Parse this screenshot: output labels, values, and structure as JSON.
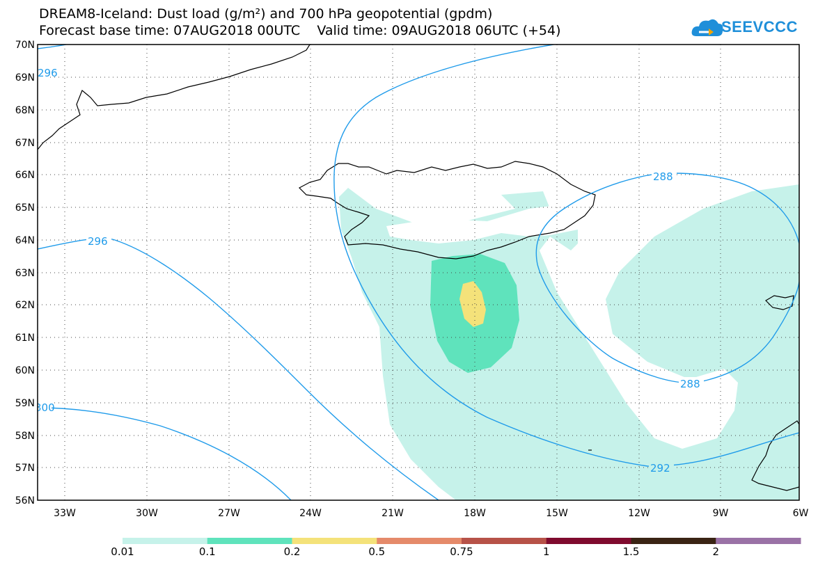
{
  "title": {
    "line1": "DREAM8-Iceland: Dust load (g/m²) and 700 hPa geopotential (gpdm)",
    "line2": "Forecast base time: 07AUG2018 00UTC    Valid time: 09AUG2018 06UTC (+54)"
  },
  "logo": {
    "text": "SEEVCCC"
  },
  "axes": {
    "lat_labels": [
      "70N",
      "69N",
      "68N",
      "67N",
      "66N",
      "65N",
      "64N",
      "63N",
      "62N",
      "61N",
      "60N",
      "59N",
      "58N",
      "57N",
      "56N"
    ],
    "lon_labels": [
      "33W",
      "30W",
      "27W",
      "24W",
      "21W",
      "18W",
      "15W",
      "12W",
      "9W",
      "6W"
    ]
  },
  "contours": {
    "labels": [
      "296",
      "296",
      "288",
      "288",
      "292",
      "300"
    ]
  },
  "colorbar": {
    "labels": [
      "0.01",
      "0.1",
      "0.2",
      "0.5",
      "0.75",
      "1",
      "1.5",
      "2"
    ],
    "colors": [
      "#c6f2ea",
      "#5fe3bc",
      "#f4e27a",
      "#e58a6a",
      "#b75248",
      "#7f0b2e",
      "#3a2414",
      "#9a72a6"
    ]
  },
  "colors": {
    "contour": "#1f9bea",
    "dust_low": "#c6f2ea",
    "dust_mid": "#5fe3bc",
    "dust_high": "#f4e27a"
  }
}
